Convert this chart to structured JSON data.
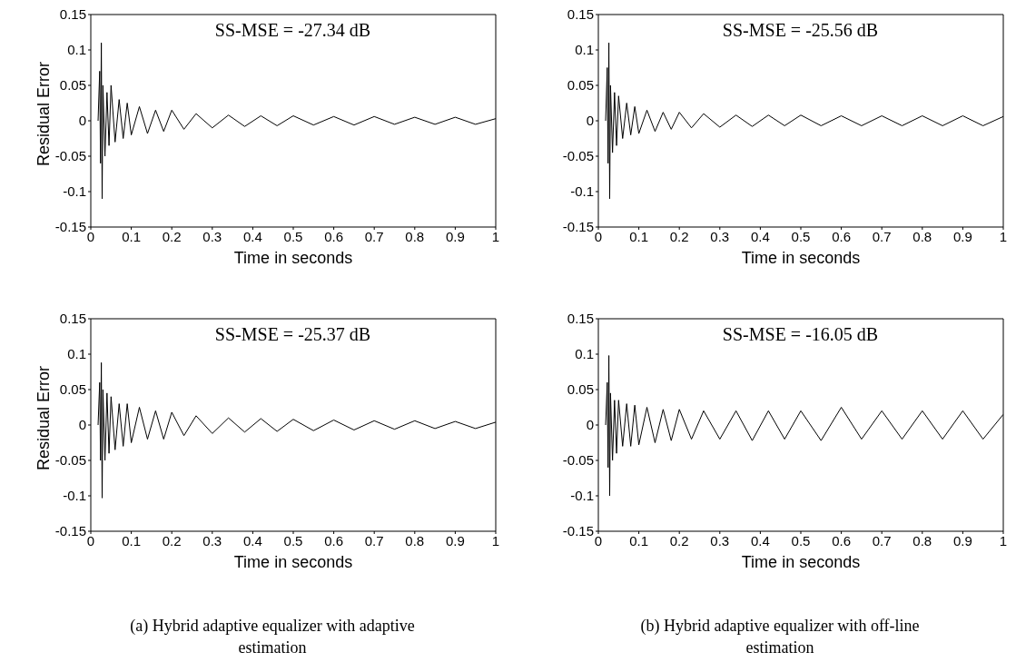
{
  "chart_data": [
    {
      "type": "line",
      "ylabel": "Residual Error",
      "xlabel": "Time in seconds",
      "color": "#000000",
      "xlim": [
        0,
        1
      ],
      "ylim": [
        -0.15,
        0.15
      ],
      "xticks": [
        0,
        0.1,
        0.2,
        0.3,
        0.4,
        0.5,
        0.6,
        0.7,
        0.8,
        0.9,
        1
      ],
      "yticks": [
        -0.15,
        -0.1,
        -0.05,
        0,
        0.05,
        0.1,
        0.15
      ],
      "annotations": [
        "SS-MSE = -27.34 dB"
      ],
      "x": [
        0.018,
        0.022,
        0.024,
        0.026,
        0.028,
        0.03,
        0.035,
        0.04,
        0.045,
        0.05,
        0.06,
        0.07,
        0.08,
        0.09,
        0.1,
        0.12,
        0.14,
        0.16,
        0.18,
        0.2,
        0.23,
        0.26,
        0.3,
        0.34,
        0.38,
        0.42,
        0.46,
        0.5,
        0.55,
        0.6,
        0.65,
        0.7,
        0.75,
        0.8,
        0.85,
        0.9,
        0.95,
        1
      ],
      "values": [
        0,
        0.07,
        -0.06,
        0.11,
        -0.11,
        0.05,
        -0.05,
        0.04,
        -0.035,
        0.05,
        -0.03,
        0.03,
        -0.025,
        0.025,
        -0.02,
        0.02,
        -0.018,
        0.015,
        -0.015,
        0.015,
        -0.012,
        0.01,
        -0.01,
        0.008,
        -0.008,
        0.007,
        -0.007,
        0.007,
        -0.006,
        0.006,
        -0.006,
        0.006,
        -0.005,
        0.005,
        -0.005,
        0.005,
        -0.005,
        0.003
      ]
    },
    {
      "type": "line",
      "xlabel": "Time in seconds",
      "color": "#000000",
      "xlim": [
        0,
        1
      ],
      "ylim": [
        -0.15,
        0.15
      ],
      "xticks": [
        0,
        0.1,
        0.2,
        0.3,
        0.4,
        0.5,
        0.6,
        0.7,
        0.8,
        0.9,
        1
      ],
      "yticks": [
        -0.15,
        -0.1,
        -0.05,
        0,
        0.05,
        0.1,
        0.15
      ],
      "annotations": [
        "SS-MSE = -25.56 dB"
      ],
      "x": [
        0.018,
        0.022,
        0.024,
        0.026,
        0.028,
        0.03,
        0.035,
        0.04,
        0.045,
        0.05,
        0.06,
        0.07,
        0.08,
        0.09,
        0.1,
        0.12,
        0.14,
        0.16,
        0.18,
        0.2,
        0.23,
        0.26,
        0.3,
        0.34,
        0.38,
        0.42,
        0.46,
        0.5,
        0.55,
        0.6,
        0.65,
        0.7,
        0.75,
        0.8,
        0.85,
        0.9,
        0.95,
        1
      ],
      "values": [
        0,
        0.075,
        -0.06,
        0.11,
        -0.11,
        0.05,
        -0.045,
        0.04,
        -0.035,
        0.035,
        -0.025,
        0.025,
        -0.02,
        0.02,
        -0.018,
        0.015,
        -0.015,
        0.012,
        -0.012,
        0.012,
        -0.01,
        0.01,
        -0.009,
        0.008,
        -0.008,
        0.008,
        -0.007,
        0.008,
        -0.007,
        0.007,
        -0.007,
        0.007,
        -0.007,
        0.007,
        -0.007,
        0.007,
        -0.007,
        0.006
      ]
    },
    {
      "type": "line",
      "ylabel": "Residual Error",
      "xlabel": "Time in seconds",
      "color": "#000000",
      "xlim": [
        0,
        1
      ],
      "ylim": [
        -0.15,
        0.15
      ],
      "xticks": [
        0,
        0.1,
        0.2,
        0.3,
        0.4,
        0.5,
        0.6,
        0.7,
        0.8,
        0.9,
        1
      ],
      "yticks": [
        -0.15,
        -0.1,
        -0.05,
        0,
        0.05,
        0.1,
        0.15
      ],
      "annotations": [
        "SS-MSE = -25.37 dB",
        "(a) Hybrid adaptive equalizer with adaptive estimation"
      ],
      "x": [
        0.018,
        0.022,
        0.024,
        0.026,
        0.028,
        0.03,
        0.035,
        0.04,
        0.045,
        0.05,
        0.06,
        0.07,
        0.08,
        0.09,
        0.1,
        0.12,
        0.14,
        0.16,
        0.18,
        0.2,
        0.23,
        0.26,
        0.3,
        0.34,
        0.38,
        0.42,
        0.46,
        0.5,
        0.55,
        0.6,
        0.65,
        0.7,
        0.75,
        0.8,
        0.85,
        0.9,
        0.95,
        1
      ],
      "values": [
        0,
        0.06,
        -0.05,
        0.088,
        -0.103,
        0.05,
        -0.05,
        0.045,
        -0.04,
        0.04,
        -0.035,
        0.03,
        -0.03,
        0.03,
        -0.025,
        0.025,
        -0.02,
        0.02,
        -0.02,
        0.018,
        -0.015,
        0.013,
        -0.012,
        0.01,
        -0.01,
        0.009,
        -0.009,
        0.008,
        -0.008,
        0.007,
        -0.007,
        0.006,
        -0.006,
        0.006,
        -0.005,
        0.005,
        -0.005,
        0.004
      ]
    },
    {
      "type": "line",
      "xlabel": "Time in seconds",
      "color": "#000000",
      "xlim": [
        0,
        1
      ],
      "ylim": [
        -0.15,
        0.15
      ],
      "xticks": [
        0,
        0.1,
        0.2,
        0.3,
        0.4,
        0.5,
        0.6,
        0.7,
        0.8,
        0.9,
        1
      ],
      "yticks": [
        -0.15,
        -0.1,
        -0.05,
        0,
        0.05,
        0.1,
        0.15
      ],
      "annotations": [
        "SS-MSE = -16.05 dB",
        "(b) Hybrid adaptive equalizer with off-line estimation"
      ],
      "x": [
        0.018,
        0.022,
        0.024,
        0.026,
        0.028,
        0.03,
        0.035,
        0.04,
        0.045,
        0.05,
        0.06,
        0.07,
        0.08,
        0.09,
        0.1,
        0.12,
        0.14,
        0.16,
        0.18,
        0.2,
        0.23,
        0.26,
        0.3,
        0.34,
        0.38,
        0.42,
        0.46,
        0.5,
        0.55,
        0.6,
        0.65,
        0.7,
        0.75,
        0.8,
        0.85,
        0.9,
        0.95,
        1
      ],
      "values": [
        0,
        0.06,
        -0.06,
        0.098,
        -0.1,
        0.045,
        -0.05,
        0.035,
        -0.04,
        0.035,
        -0.03,
        0.03,
        -0.03,
        0.028,
        -0.028,
        0.025,
        -0.025,
        0.022,
        -0.022,
        0.022,
        -0.02,
        0.02,
        -0.02,
        0.02,
        -0.022,
        0.02,
        -0.02,
        0.02,
        -0.022,
        0.025,
        -0.02,
        0.02,
        -0.02,
        0.02,
        -0.02,
        0.02,
        -0.02,
        0.015
      ]
    }
  ]
}
